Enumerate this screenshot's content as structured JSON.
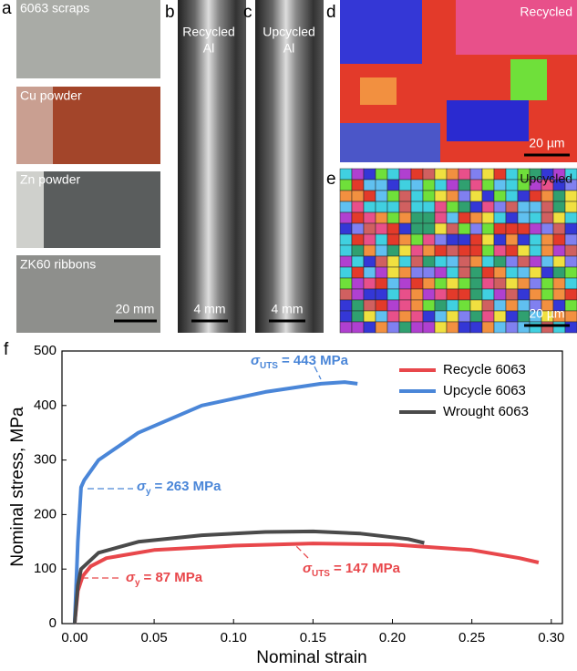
{
  "panels": [
    {
      "label": "a",
      "captions": [
        "6063 scraps",
        "Cu powder",
        "Zn powder",
        "ZK60 ribbons"
      ],
      "scale": "20 mm"
    },
    {
      "label": "b",
      "captions": [
        "Recycled",
        "Al"
      ],
      "scale": "4 mm"
    },
    {
      "label": "c",
      "captions": [
        "Upcycled",
        "Al"
      ],
      "scale": "4 mm"
    },
    {
      "label": "d",
      "captions": [
        "Recycled"
      ],
      "scale": "20 µm"
    },
    {
      "label": "e",
      "captions": [
        "Upcycled"
      ],
      "scale": "20 µm"
    }
  ],
  "chart_data": {
    "type": "line",
    "panel_label": "f",
    "x_label": "Nominal strain",
    "y_label": "Nominal stress, MPa",
    "xlim": [
      -0.008,
      0.307
    ],
    "ylim": [
      0,
      500
    ],
    "xticks": [
      {
        "value": 0,
        "label": "0.00"
      },
      0.05,
      {
        "value": 0.1,
        "label": "0.10"
      },
      0.15,
      {
        "value": 0.2,
        "label": "0.20"
      },
      0.25,
      {
        "value": 0.3,
        "label": "0.30"
      }
    ],
    "yticks": [
      0,
      100,
      200,
      300,
      400,
      500
    ],
    "legend": "top-right",
    "series": [
      {
        "name": "Recycle 6063",
        "color": "#e8474b",
        "x": [
          0,
          0.002,
          0.005,
          0.01,
          0.02,
          0.05,
          0.1,
          0.15,
          0.2,
          0.25,
          0.28,
          0.292
        ],
        "values": [
          0,
          60,
          87,
          105,
          120,
          135,
          143,
          147,
          145,
          135,
          120,
          112
        ]
      },
      {
        "name": "Upcycle 6063",
        "color": "#4a86d8",
        "x": [
          0,
          0.002,
          0.004,
          0.006,
          0.015,
          0.04,
          0.08,
          0.12,
          0.155,
          0.17,
          0.178
        ],
        "values": [
          0,
          150,
          250,
          263,
          300,
          350,
          400,
          425,
          440,
          443,
          440
        ]
      },
      {
        "name": "Wrought 6063",
        "color": "#4a4a4a",
        "x": [
          0,
          0.002,
          0.004,
          0.015,
          0.04,
          0.08,
          0.12,
          0.15,
          0.18,
          0.21,
          0.22
        ],
        "values": [
          0,
          70,
          100,
          130,
          150,
          162,
          168,
          169,
          165,
          155,
          148
        ]
      }
    ],
    "annotations": [
      {
        "symbol": "σ",
        "subscript": "UTS",
        "text": "= 443 MPa",
        "color": "#4a86d8"
      },
      {
        "symbol": "σ",
        "subscript": "y",
        "text": "= 263 MPa",
        "color": "#4a86d8"
      },
      {
        "symbol": "σ",
        "subscript": "y",
        "text": "= 87 MPa",
        "color": "#e8474b"
      },
      {
        "symbol": "σ",
        "subscript": "UTS",
        "text": "= 147 MPa",
        "color": "#e8474b"
      }
    ]
  }
}
